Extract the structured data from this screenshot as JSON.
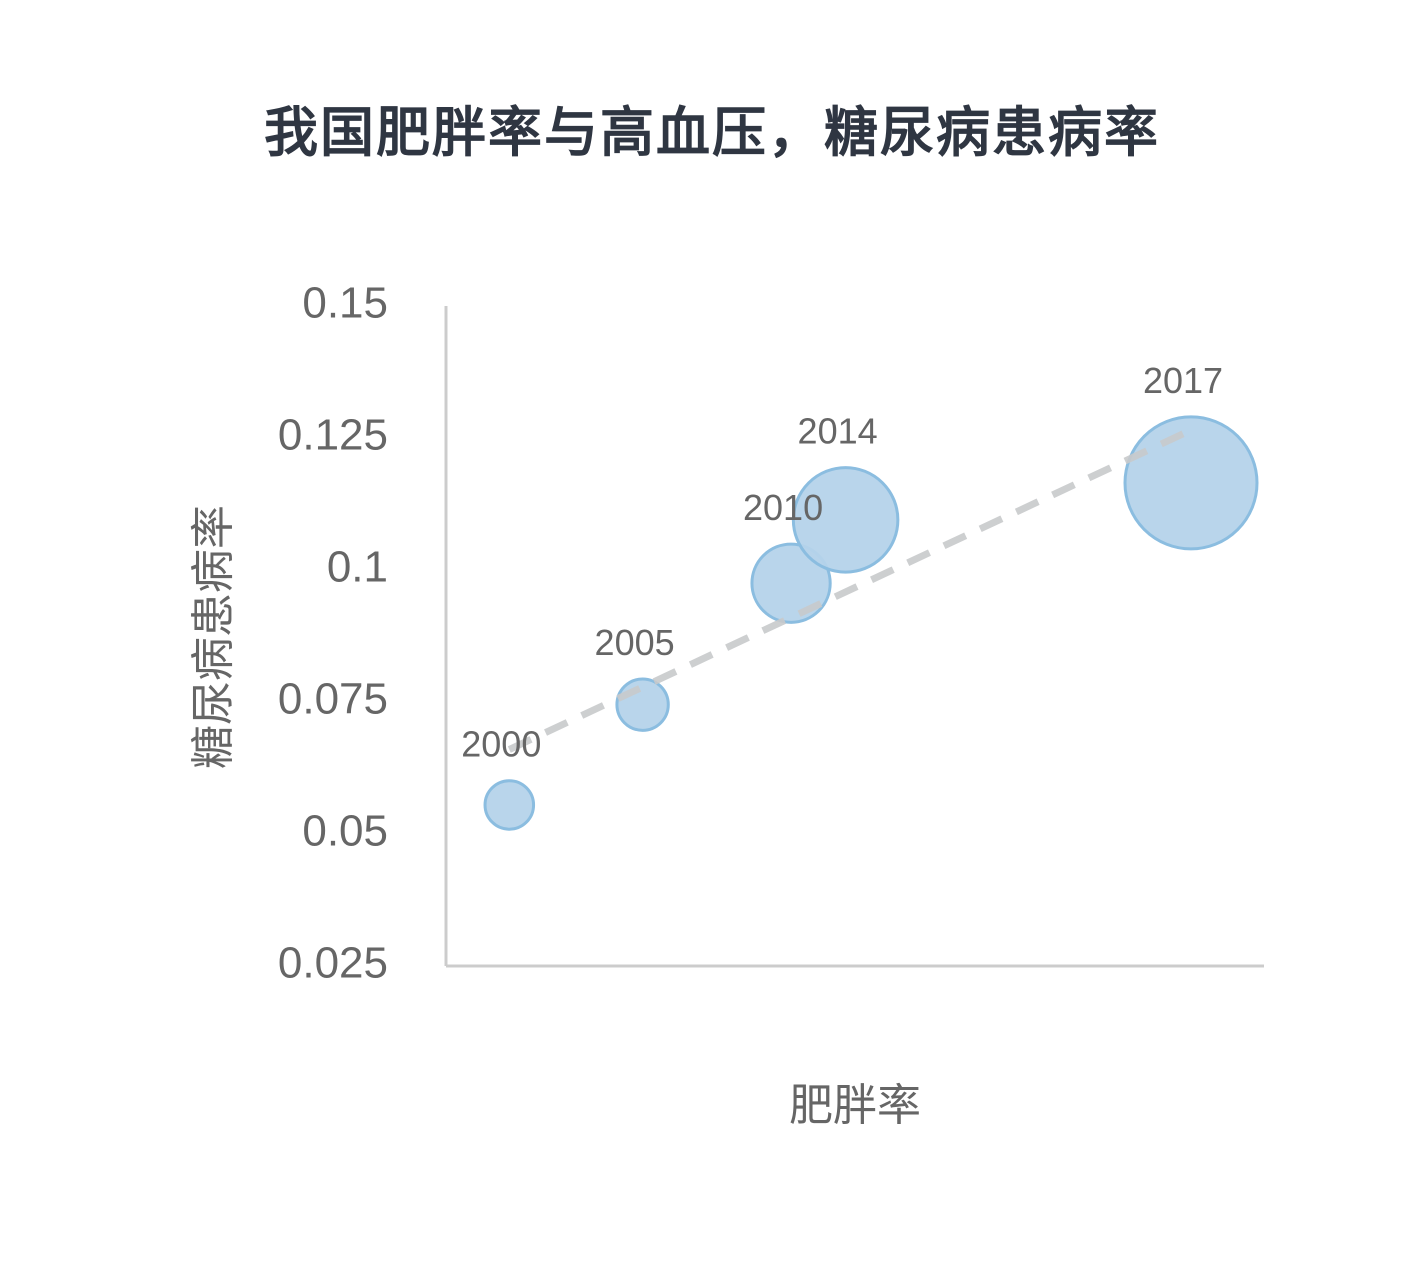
{
  "chart_data": {
    "type": "scatter",
    "subtype": "bubble",
    "title": "我国肥胖率与高血压，糖尿病患病率",
    "xlabel": "肥胖率",
    "ylabel": "糖尿病患病率",
    "ylim": [
      0.025,
      0.15
    ],
    "yticks": [
      "0.15",
      "0.125",
      "0.1",
      "0.075",
      "0.05",
      "0.025"
    ],
    "xlim": [
      0,
      2.35
    ],
    "x_tick_labels_shown": false,
    "grid": false,
    "legend": "none",
    "colors": {
      "bubble_fill": "#b5d3ea",
      "bubble_stroke": "#8bbde0",
      "trendline": "#c8cacc",
      "axis": "#cccccc",
      "text": "#666666",
      "title": "#2f3642"
    },
    "points": [
      {
        "label": "2000",
        "x": 0.1,
        "y": 0.0555,
        "size": 0.25
      },
      {
        "label": "2005",
        "x": 0.54,
        "y": 0.0745,
        "size": 0.28
      },
      {
        "label": "2010",
        "x": 1.03,
        "y": 0.0975,
        "size": 0.65
      },
      {
        "label": "2014",
        "x": 1.21,
        "y": 0.1095,
        "size": 1.16
      },
      {
        "label": "2017",
        "x": 2.35,
        "y": 0.1165,
        "size": 1.85
      }
    ],
    "trendline": {
      "style": "dashed",
      "start": {
        "x": 0.1,
        "y": 0.066
      },
      "end": {
        "x": 2.35,
        "y": 0.1265
      }
    }
  }
}
